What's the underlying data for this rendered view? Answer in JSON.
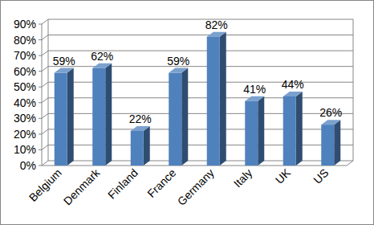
{
  "chart_data": {
    "type": "bar",
    "categories": [
      "Belgium",
      "Denmark",
      "Finland",
      "France",
      "Germany",
      "Italy",
      "UK",
      "US"
    ],
    "values": [
      59,
      62,
      22,
      59,
      82,
      41,
      44,
      26
    ],
    "value_labels": [
      "59%",
      "62%",
      "22%",
      "59%",
      "82%",
      "41%",
      "44%",
      "26%"
    ],
    "data_labels": true,
    "color": "#4f81bd",
    "ylim": [
      0,
      90
    ],
    "yticks": [
      {
        "value": 0,
        "label": "0%"
      },
      {
        "value": 10,
        "label": "10%"
      },
      {
        "value": 20,
        "label": "20%"
      },
      {
        "value": 30,
        "label": "30%"
      },
      {
        "value": 40,
        "label": "40%"
      },
      {
        "value": 50,
        "label": "50%"
      },
      {
        "value": 60,
        "label": "60%"
      },
      {
        "value": 70,
        "label": "70%"
      },
      {
        "value": 80,
        "label": "80%"
      },
      {
        "value": 90,
        "label": "90%"
      }
    ],
    "grid": true
  }
}
